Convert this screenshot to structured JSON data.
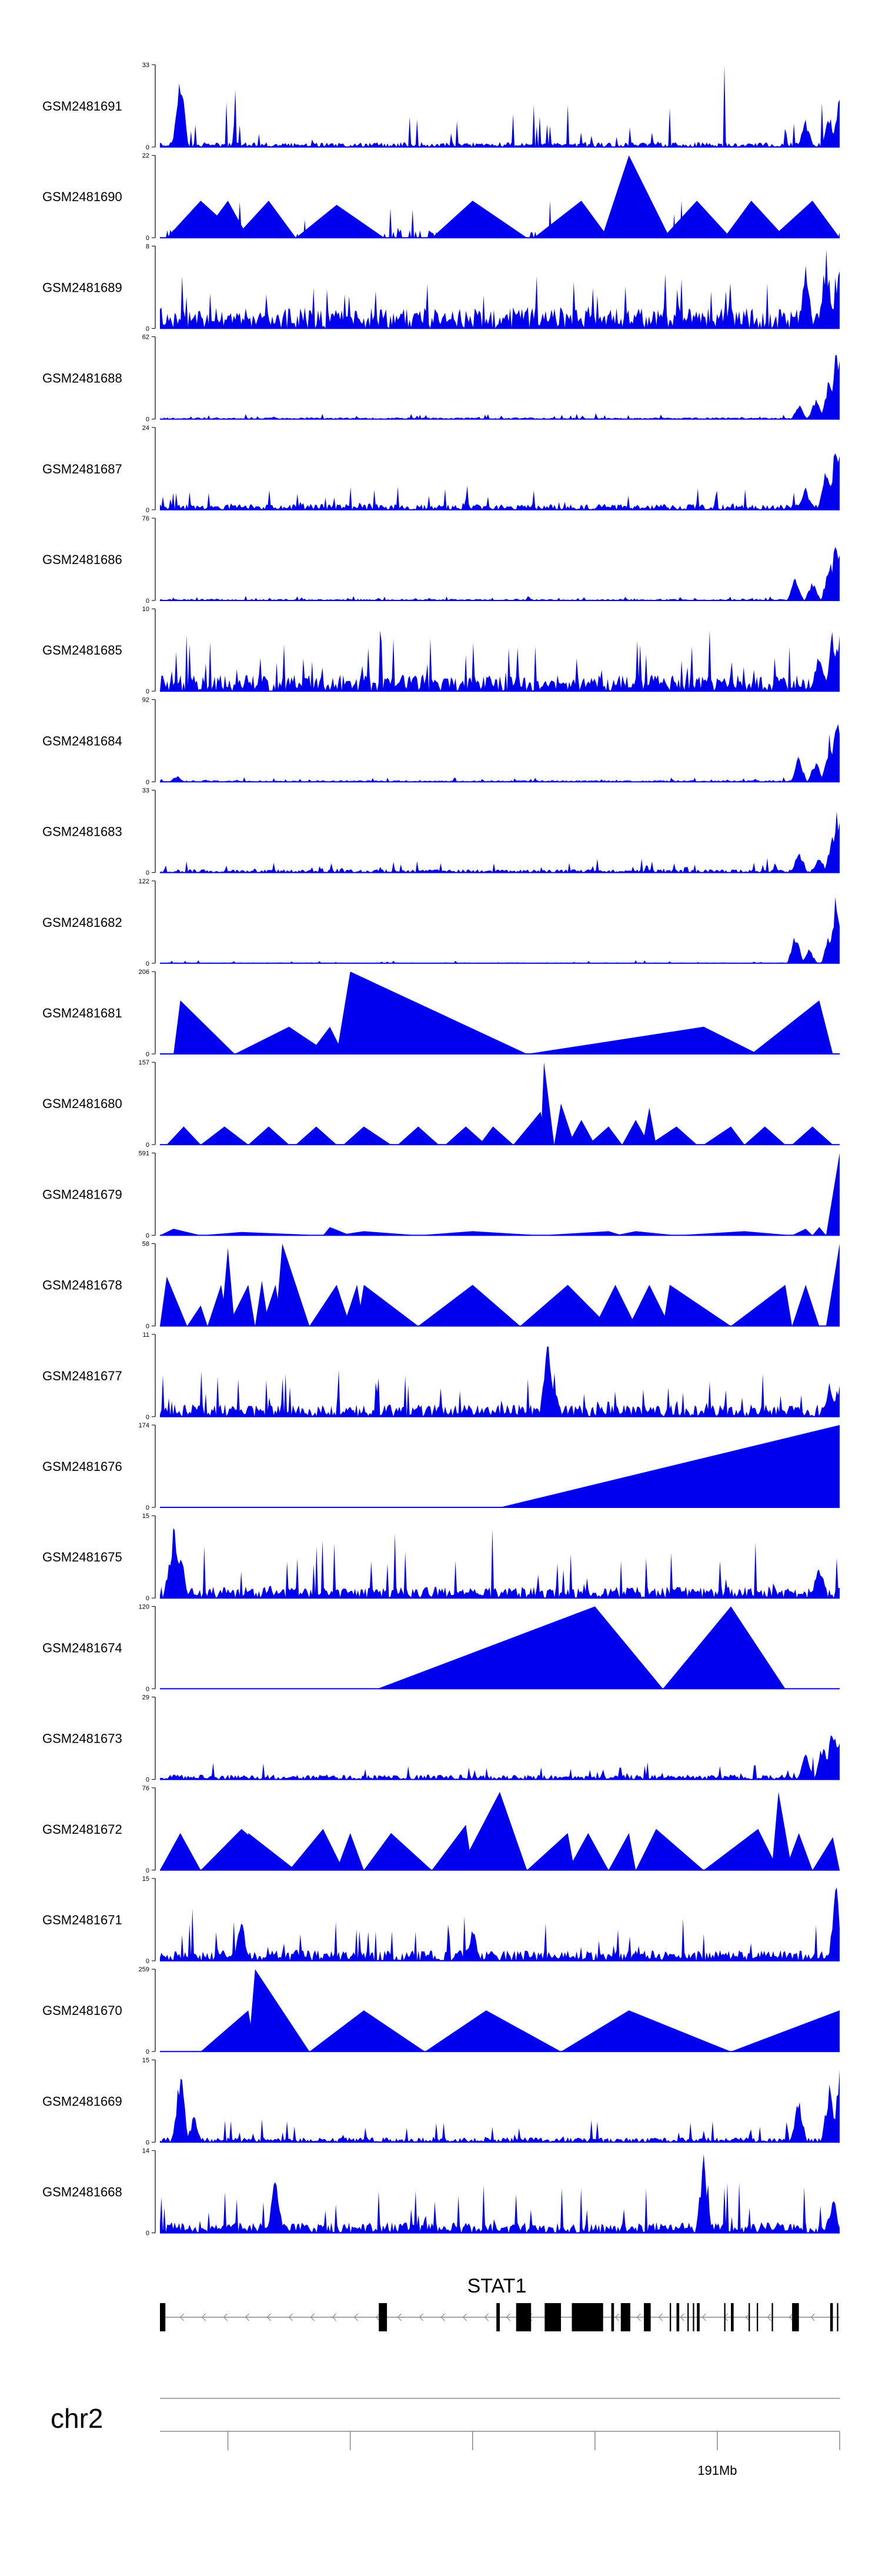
{
  "chart_data": {
    "type": "area",
    "color": "#0000ee",
    "gene": {
      "name": "STAT1",
      "strand": "-",
      "exons": [
        [
          0,
          0.008
        ],
        [
          0.322,
          0.334
        ],
        [
          0.495,
          0.5
        ],
        [
          0.524,
          0.546
        ],
        [
          0.566,
          0.59
        ],
        [
          0.606,
          0.652
        ],
        [
          0.664,
          0.668
        ],
        [
          0.678,
          0.692
        ],
        [
          0.712,
          0.722
        ],
        [
          0.75,
          0.752
        ],
        [
          0.76,
          0.764
        ],
        [
          0.776,
          0.778
        ],
        [
          0.784,
          0.786
        ],
        [
          0.79,
          0.794
        ],
        [
          0.83,
          0.832
        ],
        [
          0.84,
          0.844
        ],
        [
          0.866,
          0.868
        ],
        [
          0.878,
          0.88
        ],
        [
          0.9,
          0.902
        ],
        [
          0.93,
          0.94
        ],
        [
          0.986,
          0.99
        ],
        [
          0.996,
          0.998
        ]
      ]
    },
    "chromosome": "chr2",
    "axis_tick_label": "191Mb",
    "tracks": [
      {
        "name": "GSM2481691",
        "ymax": 33,
        "kind": "noise",
        "seed": 91,
        "base": 0.06,
        "spike": 0.55,
        "peaks": [
          [
            0.03,
            1.0
          ],
          [
            0.95,
            0.35
          ],
          [
            0.985,
            0.45
          ],
          [
            1.0,
            0.7
          ]
        ]
      },
      {
        "name": "GSM2481690",
        "ymax": 22,
        "kind": "mixed",
        "seed": 90,
        "density": 0.55,
        "tri": [
          [
            0.01,
            0.06,
            0.12,
            0.45
          ],
          [
            0.06,
            0.1,
            0.13,
            0.45
          ],
          [
            0.11,
            0.16,
            0.2,
            0.45
          ],
          [
            0.2,
            0.26,
            0.33,
            0.4
          ],
          [
            0.4,
            0.46,
            0.54,
            0.45
          ],
          [
            0.55,
            0.62,
            0.66,
            0.45
          ],
          [
            0.65,
            0.69,
            0.75,
            1.0
          ],
          [
            0.74,
            0.79,
            0.84,
            0.45
          ],
          [
            0.83,
            0.87,
            0.92,
            0.45
          ],
          [
            0.9,
            0.96,
            1.0,
            0.45
          ]
        ]
      },
      {
        "name": "GSM2481689",
        "ymax": 8,
        "kind": "noise",
        "seed": 89,
        "base": 0.25,
        "spike": 0.45,
        "peaks": [
          [
            0.95,
            0.8
          ],
          [
            0.98,
            1.0
          ],
          [
            1.0,
            0.9
          ]
        ]
      },
      {
        "name": "GSM2481688",
        "ymax": 62,
        "kind": "noise",
        "seed": 88,
        "base": 0.02,
        "spike": 0.05,
        "peaks": [
          [
            0.94,
            0.2
          ],
          [
            0.965,
            0.3
          ],
          [
            0.985,
            0.6
          ],
          [
            0.995,
            0.9
          ],
          [
            1.0,
            0.8
          ]
        ]
      },
      {
        "name": "GSM2481687",
        "ymax": 24,
        "kind": "noise",
        "seed": 87,
        "base": 0.07,
        "spike": 0.25,
        "peaks": [
          [
            0.95,
            0.3
          ],
          [
            0.98,
            0.55
          ],
          [
            0.995,
            0.95
          ],
          [
            1.0,
            0.8
          ]
        ]
      },
      {
        "name": "GSM2481686",
        "ymax": 76,
        "kind": "noise",
        "seed": 86,
        "base": 0.02,
        "spike": 0.04,
        "peaks": [
          [
            0.935,
            0.35
          ],
          [
            0.96,
            0.25
          ],
          [
            0.985,
            0.55
          ],
          [
            0.995,
            0.95
          ],
          [
            1.0,
            0.7
          ]
        ]
      },
      {
        "name": "GSM2481685",
        "ymax": 10,
        "kind": "noise",
        "seed": 85,
        "base": 0.2,
        "spike": 0.6,
        "peaks": [
          [
            0.97,
            0.6
          ],
          [
            0.99,
            0.8
          ],
          [
            1.0,
            0.95
          ]
        ]
      },
      {
        "name": "GSM2481684",
        "ymax": 92,
        "kind": "noise",
        "seed": 84,
        "base": 0.02,
        "spike": 0.04,
        "peaks": [
          [
            0.025,
            0.08
          ],
          [
            0.94,
            0.35
          ],
          [
            0.965,
            0.3
          ],
          [
            0.985,
            0.6
          ],
          [
            0.995,
            0.95
          ],
          [
            1.0,
            0.85
          ]
        ]
      },
      {
        "name": "GSM2481683",
        "ymax": 33,
        "kind": "noise",
        "seed": 83,
        "base": 0.04,
        "spike": 0.12,
        "peaks": [
          [
            0.94,
            0.3
          ],
          [
            0.97,
            0.2
          ],
          [
            0.99,
            0.55
          ],
          [
            0.997,
            0.9
          ],
          [
            1.0,
            0.7
          ]
        ]
      },
      {
        "name": "GSM2481682",
        "ymax": 122,
        "kind": "noise",
        "seed": 82,
        "base": 0.01,
        "spike": 0.03,
        "peaks": [
          [
            0.935,
            0.4
          ],
          [
            0.955,
            0.2
          ],
          [
            0.985,
            0.4
          ],
          [
            0.995,
            0.95
          ],
          [
            1.0,
            0.6
          ]
        ]
      },
      {
        "name": "GSM2481681",
        "ymax": 206,
        "kind": "tri",
        "tri": [
          [
            0.02,
            0.03,
            0.11,
            0.65
          ],
          [
            0.11,
            0.19,
            0.25,
            0.33
          ],
          [
            0.22,
            0.25,
            0.27,
            0.33
          ],
          [
            0.26,
            0.28,
            0.54,
            1.0
          ],
          [
            0.54,
            0.8,
            0.88,
            0.33
          ],
          [
            0.87,
            0.97,
            0.99,
            0.65
          ]
        ]
      },
      {
        "name": "GSM2481680",
        "ymax": 157,
        "kind": "tri",
        "tri": [
          [
            0.01,
            0.035,
            0.06,
            0.22
          ],
          [
            0.06,
            0.095,
            0.13,
            0.22
          ],
          [
            0.13,
            0.16,
            0.19,
            0.22
          ],
          [
            0.2,
            0.23,
            0.26,
            0.22
          ],
          [
            0.27,
            0.3,
            0.34,
            0.22
          ],
          [
            0.35,
            0.38,
            0.41,
            0.22
          ],
          [
            0.42,
            0.45,
            0.48,
            0.22
          ],
          [
            0.47,
            0.49,
            0.52,
            0.22
          ],
          [
            0.52,
            0.56,
            0.57,
            0.4
          ],
          [
            0.56,
            0.565,
            0.58,
            1.0
          ],
          [
            0.58,
            0.59,
            0.61,
            0.5
          ],
          [
            0.6,
            0.62,
            0.64,
            0.3
          ],
          [
            0.63,
            0.66,
            0.68,
            0.22
          ],
          [
            0.68,
            0.7,
            0.72,
            0.3
          ],
          [
            0.71,
            0.72,
            0.73,
            0.45
          ],
          [
            0.72,
            0.76,
            0.79,
            0.22
          ],
          [
            0.8,
            0.84,
            0.86,
            0.22
          ],
          [
            0.86,
            0.89,
            0.92,
            0.22
          ],
          [
            0.93,
            0.96,
            0.99,
            0.22
          ]
        ]
      },
      {
        "name": "GSM2481679",
        "ymax": 591,
        "kind": "tri",
        "tri": [
          [
            0.0,
            0.02,
            0.06,
            0.08
          ],
          [
            0.06,
            0.12,
            0.24,
            0.04
          ],
          [
            0.24,
            0.25,
            0.28,
            0.1
          ],
          [
            0.26,
            0.3,
            0.38,
            0.05
          ],
          [
            0.38,
            0.46,
            0.56,
            0.05
          ],
          [
            0.56,
            0.66,
            0.68,
            0.05
          ],
          [
            0.67,
            0.7,
            0.76,
            0.05
          ],
          [
            0.76,
            0.86,
            0.93,
            0.05
          ],
          [
            0.93,
            0.95,
            0.96,
            0.08
          ],
          [
            0.96,
            0.97,
            0.98,
            0.1
          ],
          [
            0.98,
            1.0,
            1.0,
            1.0
          ]
        ]
      },
      {
        "name": "GSM2481678",
        "ymax": 58,
        "kind": "tri",
        "tri": [
          [
            0.0,
            0.01,
            0.04,
            0.6
          ],
          [
            0.04,
            0.06,
            0.07,
            0.25
          ],
          [
            0.07,
            0.09,
            0.1,
            0.5
          ],
          [
            0.09,
            0.1,
            0.11,
            0.95
          ],
          [
            0.1,
            0.13,
            0.14,
            0.5
          ],
          [
            0.14,
            0.15,
            0.16,
            0.55
          ],
          [
            0.15,
            0.17,
            0.18,
            0.5
          ],
          [
            0.17,
            0.18,
            0.22,
            1.0
          ],
          [
            0.22,
            0.26,
            0.28,
            0.5
          ],
          [
            0.27,
            0.29,
            0.3,
            0.5
          ],
          [
            0.29,
            0.3,
            0.38,
            0.5
          ],
          [
            0.38,
            0.46,
            0.53,
            0.5
          ],
          [
            0.53,
            0.6,
            0.66,
            0.5
          ],
          [
            0.64,
            0.67,
            0.7,
            0.5
          ],
          [
            0.69,
            0.72,
            0.75,
            0.5
          ],
          [
            0.74,
            0.75,
            0.84,
            0.5
          ],
          [
            0.84,
            0.92,
            0.93,
            0.5
          ],
          [
            0.93,
            0.95,
            0.97,
            0.5
          ],
          [
            0.98,
            1.0,
            1.0,
            1.0
          ]
        ]
      },
      {
        "name": "GSM2481677",
        "ymax": 11,
        "kind": "noise",
        "seed": 77,
        "base": 0.15,
        "spike": 0.45,
        "peaks": [
          [
            0.57,
            1.0
          ],
          [
            0.58,
            0.45
          ],
          [
            0.985,
            0.45
          ],
          [
            1.0,
            0.5
          ]
        ]
      },
      {
        "name": "GSM2481676",
        "ymax": 174,
        "kind": "tri",
        "tri": [
          [
            0.5,
            1.0,
            1.0,
            1.0
          ]
        ]
      },
      {
        "name": "GSM2481675",
        "ymax": 15,
        "kind": "noise",
        "seed": 75,
        "base": 0.14,
        "spike": 0.6,
        "peaks": [
          [
            0.02,
            1.0
          ],
          [
            0.03,
            0.75
          ],
          [
            0.97,
            0.5
          ]
        ]
      },
      {
        "name": "GSM2481674",
        "ymax": 120,
        "kind": "tri",
        "tri": [
          [
            0.32,
            0.64,
            0.74,
            1.0
          ],
          [
            0.74,
            0.84,
            0.92,
            1.0
          ]
        ]
      },
      {
        "name": "GSM2481673",
        "ymax": 29,
        "kind": "noise",
        "seed": 73,
        "base": 0.06,
        "spike": 0.15,
        "peaks": [
          [
            0.95,
            0.35
          ],
          [
            0.975,
            0.5
          ],
          [
            0.99,
            0.8
          ],
          [
            1.0,
            0.65
          ]
        ]
      },
      {
        "name": "GSM2481672",
        "ymax": 76,
        "kind": "tri",
        "tri": [
          [
            0.0,
            0.03,
            0.06,
            0.45
          ],
          [
            0.06,
            0.12,
            0.19,
            0.5
          ],
          [
            0.13,
            0.13,
            0.2,
            0.45
          ],
          [
            0.19,
            0.24,
            0.27,
            0.5
          ],
          [
            0.26,
            0.28,
            0.3,
            0.45
          ],
          [
            0.3,
            0.34,
            0.4,
            0.45
          ],
          [
            0.4,
            0.45,
            0.46,
            0.55
          ],
          [
            0.44,
            0.5,
            0.54,
            0.95
          ],
          [
            0.54,
            0.6,
            0.61,
            0.45
          ],
          [
            0.6,
            0.63,
            0.66,
            0.45
          ],
          [
            0.66,
            0.69,
            0.7,
            0.45
          ],
          [
            0.7,
            0.73,
            0.8,
            0.5
          ],
          [
            0.8,
            0.88,
            0.91,
            0.5
          ],
          [
            0.9,
            0.91,
            0.93,
            0.95
          ],
          [
            0.92,
            0.94,
            0.96,
            0.45
          ],
          [
            0.96,
            0.99,
            1.0,
            0.4
          ]
        ]
      },
      {
        "name": "GSM2481671",
        "ymax": 15,
        "kind": "noise",
        "seed": 71,
        "base": 0.13,
        "spike": 0.45,
        "peaks": [
          [
            0.12,
            0.55
          ],
          [
            0.46,
            0.45
          ],
          [
            0.995,
            1.0
          ]
        ]
      },
      {
        "name": "GSM2481670",
        "ymax": 259,
        "kind": "tri",
        "tri": [
          [
            0.06,
            0.13,
            0.14,
            0.5
          ],
          [
            0.13,
            0.14,
            0.22,
            1.0
          ],
          [
            0.22,
            0.3,
            0.39,
            0.5
          ],
          [
            0.39,
            0.48,
            0.59,
            0.5
          ],
          [
            0.59,
            0.69,
            0.84,
            0.5
          ],
          [
            0.84,
            1.0,
            1.0,
            0.5
          ]
        ]
      },
      {
        "name": "GSM2481669",
        "ymax": 15,
        "kind": "noise",
        "seed": 69,
        "base": 0.06,
        "spike": 0.25,
        "peaks": [
          [
            0.03,
            1.0
          ],
          [
            0.05,
            0.35
          ],
          [
            0.94,
            0.6
          ],
          [
            0.985,
            0.85
          ],
          [
            1.0,
            0.9
          ]
        ]
      },
      {
        "name": "GSM2481668",
        "ymax": 14,
        "kind": "noise",
        "seed": 68,
        "base": 0.13,
        "spike": 0.55,
        "peaks": [
          [
            0.17,
            0.85
          ],
          [
            0.8,
            1.0
          ],
          [
            0.99,
            0.5
          ]
        ]
      }
    ]
  }
}
